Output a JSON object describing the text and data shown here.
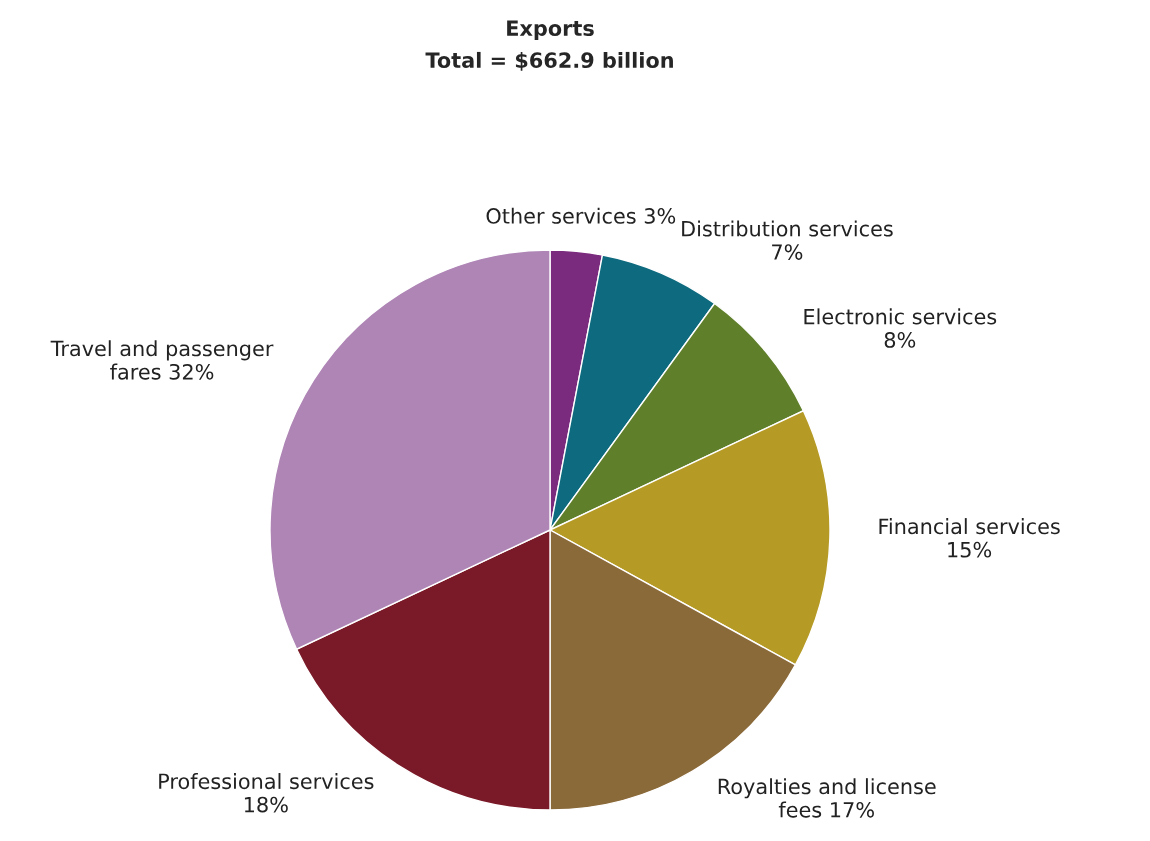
{
  "chart_data": {
    "type": "pie",
    "title": "Exports",
    "subtitle": "Total = $662.9 billion",
    "categories": [
      "Other services",
      "Distribution services",
      "Electronic services",
      "Financial services",
      "Royalties and license fees",
      "Professional services",
      "Travel and passenger fares"
    ],
    "values": [
      3,
      7,
      8,
      15,
      17,
      18,
      32
    ],
    "value_labels": [
      "3%",
      "7%",
      "8%",
      "15%",
      "17%",
      "18%",
      "32%"
    ],
    "colors": [
      "#7b2b7e",
      "#0e6a7e",
      "#5f7f2a",
      "#b59b26",
      "#8b6a3a",
      "#7a1a28",
      "#ae85b5"
    ],
    "legend": false
  }
}
